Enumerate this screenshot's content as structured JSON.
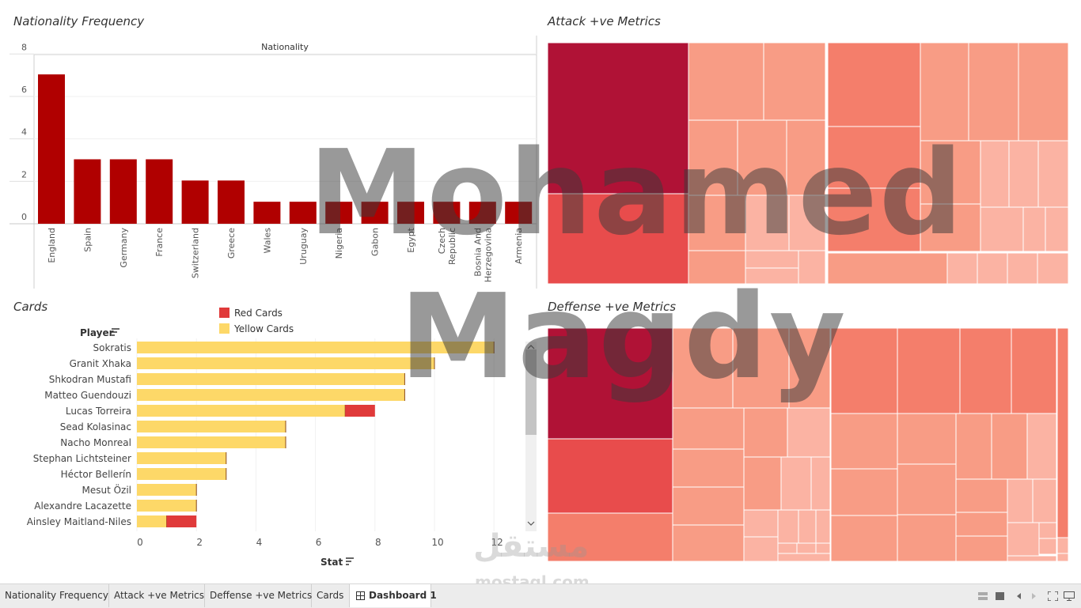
{
  "panels": {
    "nationality_title": "Nationality Frequency",
    "attack_title": "Attack +ve Metrics",
    "defense_title": "Deffense +ve Metrics",
    "cards_title": "Cards"
  },
  "chart_data": [
    {
      "type": "bar",
      "title": "Nationality Frequency",
      "header": "Nationality",
      "categories": [
        "England",
        "Spain",
        "Germany",
        "France",
        "Switzerland",
        "Greece",
        "Wales",
        "Uruguay",
        "Nigeria",
        "Gabon",
        "Egypt",
        "Czech Republic",
        "Bosnia And Herzegovina",
        "Armenia"
      ],
      "category_lines": [
        [
          "England"
        ],
        [
          "Spain"
        ],
        [
          "Germany"
        ],
        [
          "France"
        ],
        [
          "Switzerland"
        ],
        [
          "Greece"
        ],
        [
          "Wales"
        ],
        [
          "Uruguay"
        ],
        [
          "Nigeria"
        ],
        [
          "Gabon"
        ],
        [
          "Egypt"
        ],
        [
          "Czech",
          "Republic"
        ],
        [
          "Bosnia And",
          "Herzegovina"
        ],
        [
          "Armenia"
        ]
      ],
      "values": [
        7,
        3,
        3,
        3,
        2,
        2,
        1,
        1,
        1,
        1,
        1,
        1,
        1,
        1
      ],
      "yticks": [
        0,
        2,
        4,
        6,
        8
      ],
      "ylim": [
        0,
        8
      ],
      "color": "#b00000"
    },
    {
      "type": "bar",
      "orientation": "horizontal-stacked",
      "title": "Cards",
      "row_header": "Player",
      "xlabel": "Stat",
      "categories": [
        "Sokratis",
        "Granit Xhaka",
        "Shkodran Mustafi",
        "Matteo Guendouzi",
        "Lucas Torreira",
        "Sead Kolasinac",
        "Nacho Monreal",
        "Stephan Lichtsteiner",
        "Héctor Bellerín",
        "Mesut Özil",
        "Alexandre Lacazette",
        "Ainsley Maitland-Niles"
      ],
      "series": [
        {
          "name": "Yellow Cards",
          "color": "#fdd868",
          "values": [
            12,
            10,
            9,
            9,
            7,
            5,
            5,
            3,
            3,
            2,
            2,
            1
          ]
        },
        {
          "name": "Red Cards",
          "color": "#e03a3a",
          "values": [
            0,
            0,
            0,
            0,
            1,
            0,
            0,
            0,
            0,
            0,
            0,
            1
          ]
        }
      ],
      "xticks": [
        0,
        2,
        4,
        6,
        8,
        10,
        12
      ],
      "xlim": [
        0,
        13
      ]
    }
  ],
  "treemap_colors": {
    "dark": "#b01236",
    "red": "#e84c4c",
    "salmon_dark": "#f47e6b",
    "salmon": "#f89c85",
    "salmon_light": "#fbb3a3",
    "pale": "#fdc7bc"
  },
  "watermark": {
    "line1": "Mohamed",
    "line2": "Magdy"
  },
  "logo": {
    "arabic": "مستقل",
    "latin": "mostaql.com"
  },
  "tabs": [
    "Nationality Frequency",
    "Attack +ve Metrics",
    "Deffense +ve Metrics",
    "Cards",
    "Dashboard 1"
  ],
  "active_tab": "Dashboard 1",
  "icons": [
    "dashboard-icon",
    "grid-view-icon",
    "square-view-icon",
    "prev-icon",
    "next-icon",
    "fullscreen-icon",
    "present-icon",
    "sort-icon",
    "scroll-up-icon",
    "scroll-down-icon"
  ]
}
